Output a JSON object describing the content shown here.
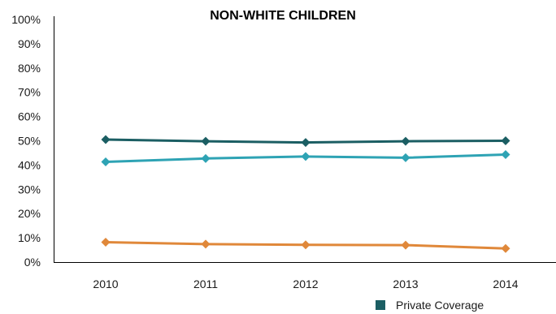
{
  "chart_data": {
    "type": "line",
    "title": "NON-WHITE CHILDREN",
    "xlabel": "",
    "ylabel": "",
    "x": [
      "2010",
      "2011",
      "2012",
      "2013",
      "2014"
    ],
    "y_tick_labels": [
      "0%",
      "10%",
      "20%",
      "30%",
      "40%",
      "50%",
      "60%",
      "70%",
      "80%",
      "90%",
      "100%"
    ],
    "ylim": [
      0,
      100
    ],
    "y_unit": "%",
    "grid": false,
    "legend_position": "bottom-right",
    "series": [
      {
        "name": "Private Coverage",
        "color": "#1b5e63",
        "marker": "diamond",
        "values": [
          50.5,
          49.8,
          49.3,
          49.8,
          50.0
        ]
      },
      {
        "color": "#2ea3b4",
        "marker": "diamond",
        "values": [
          41.3,
          42.7,
          43.5,
          43.0,
          44.3
        ]
      },
      {
        "color": "#e0883a",
        "marker": "diamond",
        "values": [
          8.2,
          7.4,
          7.1,
          7.0,
          5.6
        ]
      }
    ]
  }
}
